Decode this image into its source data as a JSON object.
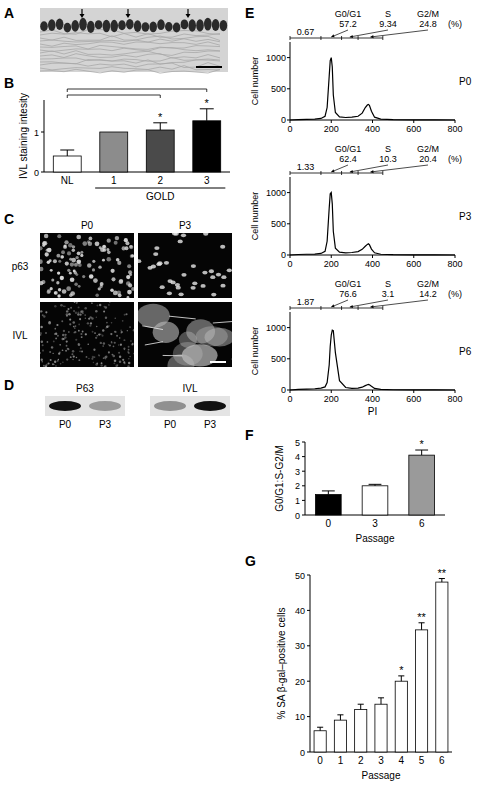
{
  "chart_data": [
    {
      "type": "bar",
      "panel": "B",
      "ylabel": "IVL staining intesity",
      "categories": [
        "NL",
        "1",
        "2",
        "3"
      ],
      "values": [
        0.4,
        1.0,
        1.05,
        1.28
      ],
      "errors": [
        0.15,
        0,
        0.18,
        0.3
      ],
      "colors": [
        "#ffffff",
        "#8c8c8c",
        "#4a4a4a",
        "#000000"
      ],
      "ylim": [
        0,
        1.8
      ],
      "yticks": [
        0,
        1
      ],
      "group_label": "GOLD",
      "group": [
        "1",
        "2",
        "3"
      ],
      "annotations": [
        {
          "text": "*",
          "category": "2"
        },
        {
          "text": "*",
          "category": "3"
        }
      ],
      "brackets": [
        [
          "NL",
          "2"
        ],
        [
          "NL",
          "3"
        ]
      ]
    },
    {
      "type": "line",
      "panel": "E",
      "title": "P0",
      "ylabel": "Cell number",
      "color": "#000000",
      "x": [
        0,
        40,
        80,
        120,
        150,
        170,
        180,
        190,
        195,
        200,
        205,
        210,
        220,
        240,
        270,
        300,
        330,
        350,
        365,
        375,
        380,
        385,
        395,
        410,
        440,
        500,
        600,
        700,
        800
      ],
      "values": [
        0,
        5,
        10,
        15,
        25,
        60,
        200,
        700,
        950,
        1000,
        850,
        400,
        120,
        50,
        40,
        45,
        60,
        110,
        200,
        240,
        250,
        235,
        140,
        45,
        15,
        5,
        2,
        1,
        0
      ],
      "xlim": [
        0,
        800
      ],
      "xticks": [
        0,
        200,
        400,
        600,
        800
      ],
      "ylim": [
        0,
        1250
      ],
      "yticks": [
        0,
        500,
        1000
      ],
      "gates": [
        0,
        150,
        250,
        330,
        450
      ],
      "gate_values": [
        0.67,
        57.2,
        9.34,
        24.8
      ],
      "gate_labels": [
        null,
        "G0/G1",
        "S",
        "G2/M"
      ],
      "unit_label": "(%)"
    },
    {
      "type": "line",
      "title": "P3",
      "ylabel": "Cell number",
      "color": "#000000",
      "x": [
        0,
        40,
        80,
        120,
        150,
        170,
        180,
        190,
        195,
        200,
        205,
        210,
        220,
        240,
        270,
        300,
        330,
        350,
        365,
        375,
        380,
        385,
        395,
        410,
        440,
        500,
        600,
        700,
        800
      ],
      "values": [
        0,
        8,
        12,
        15,
        25,
        60,
        220,
        750,
        980,
        1000,
        820,
        380,
        110,
        45,
        35,
        40,
        55,
        90,
        140,
        170,
        180,
        165,
        95,
        35,
        12,
        5,
        2,
        1,
        0
      ],
      "xlim": [
        0,
        800
      ],
      "xticks": [
        0,
        200,
        400,
        600,
        800
      ],
      "ylim": [
        0,
        1250
      ],
      "yticks": [
        0,
        500,
        1000
      ],
      "gates": [
        0,
        150,
        250,
        330,
        450
      ],
      "gate_values": [
        1.33,
        62.4,
        10.3,
        20.4
      ],
      "gate_labels": [
        null,
        "G0/G1",
        "S",
        "G2/M"
      ],
      "unit_label": "(%)"
    },
    {
      "type": "line",
      "title": "P6",
      "ylabel": "Cell number",
      "xlabel": "PI",
      "color": "#000000",
      "x": [
        0,
        40,
        80,
        120,
        150,
        170,
        180,
        190,
        195,
        200,
        205,
        210,
        220,
        240,
        270,
        300,
        330,
        350,
        365,
        375,
        380,
        385,
        395,
        410,
        440,
        500,
        600,
        700,
        800
      ],
      "values": [
        0,
        10,
        15,
        20,
        30,
        50,
        120,
        400,
        700,
        880,
        960,
        950,
        600,
        150,
        40,
        25,
        30,
        45,
        70,
        85,
        90,
        85,
        60,
        25,
        10,
        4,
        2,
        1,
        0
      ],
      "xlim": [
        0,
        800
      ],
      "xticks": [
        0,
        200,
        400,
        600,
        800
      ],
      "ylim": [
        0,
        1250
      ],
      "yticks": [
        0,
        500,
        1000
      ],
      "gates": [
        0,
        150,
        250,
        330,
        450
      ],
      "gate_values": [
        1.87,
        76.6,
        3.1,
        14.2
      ],
      "gate_labels": [
        null,
        "G0/G1",
        "S",
        "G2/M"
      ],
      "unit_label": "(%)"
    },
    {
      "type": "bar",
      "panel": "F",
      "ylabel": "G0/G1:S-G2/M",
      "xlabel": "Passage",
      "categories": [
        "0",
        "3",
        "6"
      ],
      "values": [
        1.4,
        2.0,
        4.1
      ],
      "errors": [
        0.25,
        0.1,
        0.35
      ],
      "colors": [
        "#000000",
        "#ffffff",
        "#9a9a9a"
      ],
      "ylim": [
        0,
        5
      ],
      "yticks": [
        0,
        1,
        2,
        3,
        4,
        5
      ],
      "annotations": [
        {
          "text": "*",
          "category": "6"
        }
      ]
    },
    {
      "type": "bar",
      "panel": "G",
      "ylabel": "% SA β-gal–positive cells",
      "xlabel": "Passage",
      "categories": [
        "0",
        "1",
        "2",
        "3",
        "4",
        "5",
        "6"
      ],
      "values": [
        6,
        9,
        12,
        13.5,
        20,
        34.5,
        48
      ],
      "errors": [
        1,
        1.5,
        1.5,
        1.8,
        1.5,
        2,
        1
      ],
      "color": "#ffffff",
      "ylim": [
        0,
        50
      ],
      "yticks": [
        0,
        10,
        20,
        30,
        40,
        50
      ],
      "annotations": [
        {
          "text": "*",
          "category": "4"
        },
        {
          "text": "**",
          "category": "5"
        },
        {
          "text": "**",
          "category": "6"
        }
      ]
    }
  ],
  "images": {
    "A": {
      "panel": "A"
    },
    "C": {
      "panel": "C",
      "columns": [
        "P0",
        "P3"
      ],
      "rows": [
        "p63",
        "IVL"
      ]
    },
    "D": {
      "panel": "D",
      "blots": [
        {
          "label": "P63",
          "lanes": [
            "P0",
            "P3"
          ],
          "intensity": [
            1,
            0.35
          ]
        },
        {
          "label": "IVL",
          "lanes": [
            "P0",
            "P3"
          ],
          "intensity": [
            0.4,
            1
          ]
        }
      ]
    }
  }
}
